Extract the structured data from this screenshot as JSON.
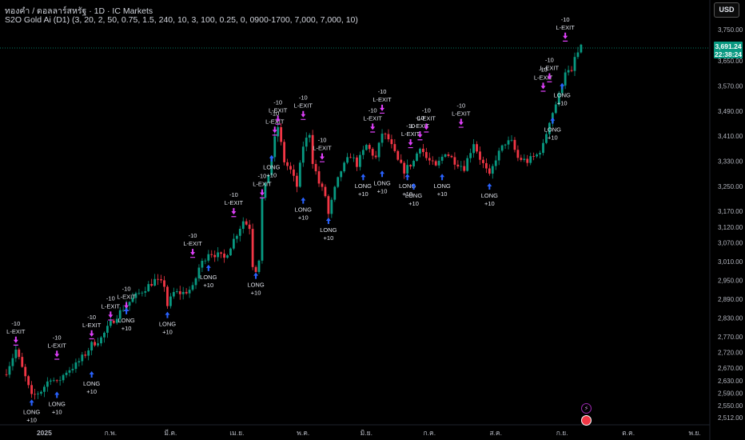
{
  "header": {
    "title": "ทองคำ / ดอลลาร์สหรัฐ · 1D · IC Markets",
    "indicator": "S2O Gold Ai (D1) (3, 20, 2, 50, 0.75, 1.5, 240, 10, 3, 100, 0.25, 0, 0900-1700, 7,000, 7,000, 10)"
  },
  "currency_button": "USD",
  "last_price": {
    "value": "3,691.24",
    "countdown": "22:38:24"
  },
  "colors": {
    "up": "#089981",
    "down": "#f23645",
    "long": "#2962ff",
    "exit": "#e040fb",
    "bg": "#000000"
  },
  "icons": [
    "lightning-icon",
    "flag-icon"
  ],
  "chart_data": {
    "type": "candlestick",
    "title": "",
    "ylim": [
      2490,
      3790
    ],
    "y_ticks": [
      3750,
      3650,
      3570,
      3490,
      3410,
      3330,
      3250,
      3170,
      3120,
      3070,
      3010,
      2950,
      2890,
      2830,
      2770,
      2720,
      2670,
      2630,
      2590,
      2550,
      2512
    ],
    "y_tick_labels": [
      "3,750.00",
      "3,650.00",
      "3,570.00",
      "3,490.00",
      "3,410.00",
      "3,330.00",
      "3,250.00",
      "3,170.00",
      "3,120.00",
      "3,070.00",
      "3,010.00",
      "2,950.00",
      "2,890.00",
      "2,830.00",
      "2,770.00",
      "2,720.00",
      "2,670.00",
      "2,630.00",
      "2,590.00",
      "2,550.00",
      "2,512.00"
    ],
    "x_ticks": [
      {
        "label": "2025",
        "bar": 12
      },
      {
        "label": "ก.พ.",
        "bar": 33
      },
      {
        "label": "มี.ค.",
        "bar": 52
      },
      {
        "label": "เม.ย.",
        "bar": 73
      },
      {
        "label": "พ.ค.",
        "bar": 94
      },
      {
        "label": "มิ.ย.",
        "bar": 114
      },
      {
        "label": "ก.ค.",
        "bar": 134
      },
      {
        "label": "ส.ค.",
        "bar": 155
      },
      {
        "label": "ก.ย.",
        "bar": 176
      },
      {
        "label": "ต.ค.",
        "bar": 197
      },
      {
        "label": "พ.ย.",
        "bar": 218
      }
    ],
    "close_path": [
      [
        0,
        2660
      ],
      [
        3,
        2728
      ],
      [
        6,
        2640
      ],
      [
        8,
        2578
      ],
      [
        11,
        2598
      ],
      [
        14,
        2640
      ],
      [
        16,
        2622
      ],
      [
        19,
        2660
      ],
      [
        22,
        2680
      ],
      [
        25,
        2715
      ],
      [
        27,
        2745
      ],
      [
        30,
        2765
      ],
      [
        33,
        2812
      ],
      [
        35,
        2838
      ],
      [
        38,
        2872
      ],
      [
        41,
        2900
      ],
      [
        44,
        2925
      ],
      [
        47,
        2950
      ],
      [
        50,
        2935
      ],
      [
        51,
        2870
      ],
      [
        53,
        2910
      ],
      [
        56,
        2910
      ],
      [
        59,
        2925
      ],
      [
        61,
        2990
      ],
      [
        64,
        3040
      ],
      [
        67,
        3030
      ],
      [
        69,
        3020
      ],
      [
        72,
        3080
      ],
      [
        75,
        3140
      ],
      [
        77,
        3120
      ],
      [
        78,
        3000
      ],
      [
        79,
        2985
      ],
      [
        80,
        3020
      ],
      [
        81,
        3210
      ],
      [
        83,
        3290
      ],
      [
        85,
        3400
      ],
      [
        86,
        3440
      ],
      [
        88,
        3330
      ],
      [
        90,
        3300
      ],
      [
        92,
        3250
      ],
      [
        94,
        3380
      ],
      [
        96,
        3420
      ],
      [
        97,
        3330
      ],
      [
        99,
        3260
      ],
      [
        101,
        3220
      ],
      [
        102,
        3160
      ],
      [
        104,
        3240
      ],
      [
        106,
        3300
      ],
      [
        109,
        3350
      ],
      [
        111,
        3320
      ],
      [
        114,
        3380
      ],
      [
        117,
        3340
      ],
      [
        119,
        3420
      ],
      [
        121,
        3400
      ],
      [
        124,
        3330
      ],
      [
        126,
        3300
      ],
      [
        129,
        3330
      ],
      [
        131,
        3380
      ],
      [
        133,
        3340
      ],
      [
        136,
        3310
      ],
      [
        139,
        3360
      ],
      [
        142,
        3330
      ],
      [
        145,
        3310
      ],
      [
        148,
        3390
      ],
      [
        150,
        3340
      ],
      [
        153,
        3280
      ],
      [
        155,
        3340
      ],
      [
        158,
        3390
      ],
      [
        160,
        3390
      ],
      [
        162,
        3340
      ],
      [
        165,
        3330
      ],
      [
        168,
        3350
      ],
      [
        170,
        3380
      ],
      [
        172,
        3460
      ],
      [
        175,
        3540
      ],
      [
        177,
        3620
      ],
      [
        179,
        3610
      ],
      [
        180,
        3660
      ],
      [
        182,
        3691
      ]
    ],
    "last_bar": 182,
    "last_price": 3691.24,
    "signals": [
      {
        "bar": 3,
        "type": "exit",
        "price": 2750,
        "labels": [
          "-10",
          "L-EXIT"
        ]
      },
      {
        "bar": 8,
        "type": "long",
        "price": 2570,
        "labels": [
          "LONG",
          "+10"
        ]
      },
      {
        "bar": 16,
        "type": "exit",
        "price": 2705,
        "labels": [
          "-10",
          "L-EXIT"
        ]
      },
      {
        "bar": 16,
        "type": "long",
        "price": 2595,
        "labels": [
          "LONG",
          "+10"
        ]
      },
      {
        "bar": 27,
        "type": "exit",
        "price": 2770,
        "labels": [
          "-10",
          "L-EXIT"
        ]
      },
      {
        "bar": 27,
        "type": "long",
        "price": 2660,
        "labels": [
          "LONG",
          "+10"
        ]
      },
      {
        "bar": 33,
        "type": "exit",
        "price": 2830,
        "labels": [
          "-10",
          "L-EXIT"
        ]
      },
      {
        "bar": 38,
        "type": "exit",
        "price": 2860,
        "labels": [
          "-10",
          "L-EXIT"
        ]
      },
      {
        "bar": 38,
        "type": "long",
        "price": 2862,
        "labels": [
          "LONG",
          "+10"
        ]
      },
      {
        "bar": 51,
        "type": "long",
        "price": 2850,
        "labels": [
          "LONG",
          "+10"
        ]
      },
      {
        "bar": 59,
        "type": "exit",
        "price": 3030,
        "labels": [
          "-10",
          "L-EXIT"
        ]
      },
      {
        "bar": 64,
        "type": "long",
        "price": 3000,
        "labels": [
          "LONG",
          "+10"
        ]
      },
      {
        "bar": 72,
        "type": "exit",
        "price": 3160,
        "labels": [
          "-10",
          "L-EXIT"
        ]
      },
      {
        "bar": 79,
        "type": "long",
        "price": 2975,
        "labels": [
          "LONG",
          "+10"
        ]
      },
      {
        "bar": 81,
        "type": "exit",
        "price": 3220,
        "labels": [
          "-10",
          "L-EXIT"
        ]
      },
      {
        "bar": 85,
        "type": "exit",
        "price": 3420,
        "labels": [
          "-10",
          "L-EXIT"
        ]
      },
      {
        "bar": 86,
        "type": "exit",
        "price": 3455,
        "labels": [
          "-10",
          "L-EXIT"
        ]
      },
      {
        "bar": 84,
        "type": "long",
        "price": 3350,
        "labels": [
          "LONG",
          "+10"
        ]
      },
      {
        "bar": 94,
        "type": "exit",
        "price": 3470,
        "labels": [
          "-10",
          "L-EXIT"
        ]
      },
      {
        "bar": 94,
        "type": "long",
        "price": 3215,
        "labels": [
          "LONG",
          "+10"
        ]
      },
      {
        "bar": 100,
        "type": "exit",
        "price": 3335,
        "labels": [
          "-10",
          "L-EXIT"
        ]
      },
      {
        "bar": 102,
        "type": "long",
        "price": 3150,
        "labels": [
          "LONG",
          "+10"
        ]
      },
      {
        "bar": 113,
        "type": "long",
        "price": 3290,
        "labels": [
          "LONG",
          "+10"
        ]
      },
      {
        "bar": 116,
        "type": "exit",
        "price": 3430,
        "labels": [
          "-10",
          "L-EXIT"
        ]
      },
      {
        "bar": 119,
        "type": "exit",
        "price": 3490,
        "labels": [
          "-10",
          "L-EXIT"
        ]
      },
      {
        "bar": 119,
        "type": "long",
        "price": 3300,
        "labels": [
          "LONG",
          "+10"
        ]
      },
      {
        "bar": 127,
        "type": "long",
        "price": 3290,
        "labels": [
          "LONG",
          "+10"
        ]
      },
      {
        "bar": 128,
        "type": "exit",
        "price": 3380,
        "labels": [
          "-10",
          "L-EXIT"
        ]
      },
      {
        "bar": 129,
        "type": "long",
        "price": 3260,
        "labels": [
          "LONG",
          "+10"
        ]
      },
      {
        "bar": 131,
        "type": "exit",
        "price": 3405,
        "labels": [
          "-10",
          "L-EXIT"
        ]
      },
      {
        "bar": 133,
        "type": "exit",
        "price": 3430,
        "labels": [
          "-10",
          "L-EXIT"
        ]
      },
      {
        "bar": 138,
        "type": "long",
        "price": 3290,
        "labels": [
          "LONG",
          "+10"
        ]
      },
      {
        "bar": 144,
        "type": "exit",
        "price": 3445,
        "labels": [
          "-10",
          "L-EXIT"
        ]
      },
      {
        "bar": 153,
        "type": "long",
        "price": 3260,
        "labels": [
          "LONG",
          "+10"
        ]
      },
      {
        "bar": 170,
        "type": "exit",
        "price": 3560,
        "labels": [
          "-10",
          "L-EXIT"
        ]
      },
      {
        "bar": 172,
        "type": "exit",
        "price": 3590,
        "labels": [
          "-10",
          "L-EXIT"
        ]
      },
      {
        "bar": 173,
        "type": "long",
        "price": 3470,
        "labels": [
          "LONG",
          "+10"
        ]
      },
      {
        "bar": 176,
        "type": "long",
        "price": 3580,
        "labels": [
          "LONG",
          "+10"
        ]
      },
      {
        "bar": 177,
        "type": "exit",
        "price": 3720,
        "labels": [
          "-10",
          "L-EXIT"
        ]
      }
    ]
  }
}
